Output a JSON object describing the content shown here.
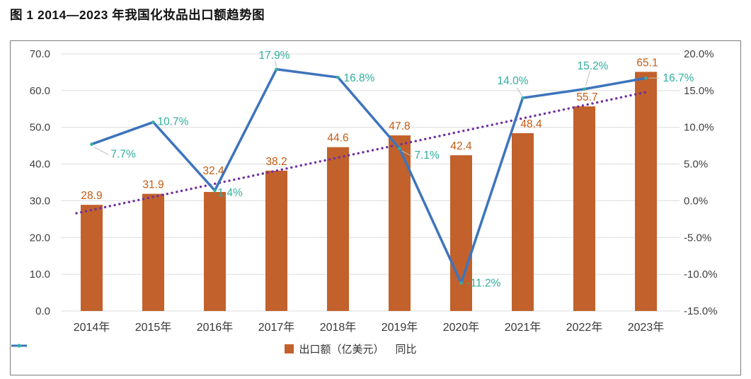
{
  "figure_title": "图 1 2014—2023 年我国化妆品出口额趋势图",
  "chart_data": {
    "type": "combo-bar-line",
    "categories": [
      "2014年",
      "2015年",
      "2016年",
      "2017年",
      "2018年",
      "2019年",
      "2020年",
      "2021年",
      "2022年",
      "2023年"
    ],
    "series": [
      {
        "name": "出口额（亿美元）",
        "type": "bar",
        "axis": "left",
        "values": [
          28.9,
          31.9,
          32.4,
          38.2,
          44.6,
          47.8,
          42.4,
          48.4,
          55.7,
          65.1
        ],
        "labels": [
          "28.9",
          "31.9",
          "32.4",
          "38.2",
          "44.6",
          "47.8",
          "42.4",
          "48.4",
          "55.7",
          "65.1"
        ]
      },
      {
        "name": "同比",
        "type": "line",
        "axis": "right",
        "values": [
          7.7,
          10.7,
          1.4,
          17.9,
          16.8,
          7.1,
          -11.2,
          14.0,
          15.2,
          16.7
        ],
        "labels": [
          "7.7%",
          "10.7%",
          "1.4%",
          "17.9%",
          "16.8%",
          "7.1%",
          "-11.2%",
          "14.0%",
          "15.2%",
          "16.7%"
        ]
      }
    ],
    "trendline": {
      "of": "出口额（亿美元）",
      "kind": "linear",
      "style": "dotted"
    },
    "left_axis": {
      "min": 0,
      "max": 70,
      "step": 10,
      "tick_labels": [
        "0.0",
        "10.0",
        "20.0",
        "30.0",
        "40.0",
        "50.0",
        "60.0",
        "70.0"
      ]
    },
    "right_axis": {
      "min": -15,
      "max": 20,
      "step": 5,
      "tick_labels": [
        "-15.0%",
        "-10.0%",
        "-5.0%",
        "0.0%",
        "5.0%",
        "10.0%",
        "15.0%",
        "20.0%"
      ]
    },
    "grid": true,
    "legend_position": "bottom",
    "legend": {
      "bar": "出口额（亿美元）",
      "line": "同比"
    },
    "colors": {
      "bar": "#c2612c",
      "bar_label": "#c55a11",
      "line": "#3e74bc",
      "marker": "#35b0a2",
      "line_label": "#2fae9c",
      "trend": "#7030a0",
      "grid": "#dcdcdc",
      "axis_text": "#404040",
      "x_label": "#383838",
      "leader": "#bfbfbf"
    }
  }
}
